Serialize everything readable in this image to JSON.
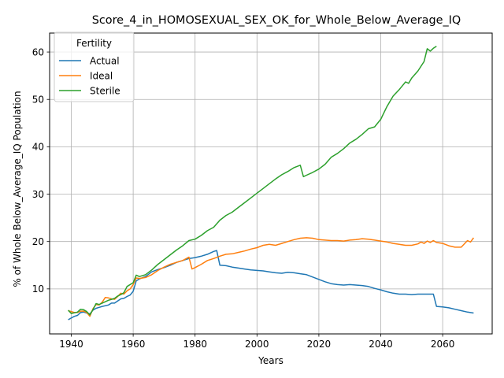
{
  "chart_data": {
    "type": "line",
    "title": "Score_4_in_HOMOSEXUAL_SEX_OK_for_Whole_Below_Average_IQ",
    "xlabel": "Years",
    "ylabel": "% of Whole Below_Average_IQ Population",
    "xlim": [
      1933,
      2076
    ],
    "ylim": [
      0.5,
      64
    ],
    "xticks": [
      1940,
      1960,
      1980,
      2000,
      2020,
      2040,
      2060
    ],
    "yticks": [
      10,
      20,
      30,
      40,
      50,
      60
    ],
    "grid": true,
    "legend": {
      "title": "Fertility",
      "placement": "top-left"
    },
    "series": [
      {
        "name": "Actual",
        "color": "#1f77b4",
        "x": [
          1939,
          1941,
          1942,
          1943,
          1944,
          1945,
          1946,
          1947,
          1948,
          1949,
          1950,
          1952,
          1953,
          1954,
          1956,
          1957,
          1958,
          1959,
          1960,
          1961,
          1962,
          1964,
          1966,
          1968,
          1970,
          1972,
          1974,
          1976,
          1978,
          1979,
          1980,
          1982,
          1984,
          1986,
          1987,
          1988,
          1990,
          1992,
          1994,
          1996,
          1998,
          2000,
          2002,
          2004,
          2006,
          2008,
          2010,
          2012,
          2014,
          2016,
          2018,
          2020,
          2022,
          2024,
          2026,
          2028,
          2030,
          2032,
          2034,
          2036,
          2038,
          2040,
          2042,
          2044,
          2046,
          2048,
          2050,
          2052,
          2054,
          2056,
          2057,
          2058,
          2060,
          2062,
          2064,
          2066,
          2068,
          2070
        ],
        "y": [
          3.5,
          4.2,
          4.4,
          5.0,
          5.1,
          4.9,
          4.7,
          5.5,
          5.9,
          6.1,
          6.3,
          6.6,
          7.0,
          7.0,
          7.9,
          8.0,
          8.4,
          8.7,
          9.5,
          11.7,
          12.1,
          12.6,
          13.6,
          14.1,
          14.5,
          15.0,
          15.6,
          16.0,
          16.4,
          16.5,
          16.6,
          16.9,
          17.3,
          17.9,
          18.1,
          15.0,
          14.9,
          14.6,
          14.4,
          14.2,
          14.0,
          13.9,
          13.8,
          13.6,
          13.4,
          13.3,
          13.5,
          13.4,
          13.2,
          13.0,
          12.5,
          12.0,
          11.5,
          11.1,
          10.9,
          10.8,
          10.9,
          10.8,
          10.7,
          10.5,
          10.1,
          9.8,
          9.4,
          9.1,
          8.9,
          8.9,
          8.8,
          8.9,
          8.9,
          8.9,
          8.9,
          6.3,
          6.2,
          6.0,
          5.7,
          5.4,
          5.1,
          4.9
        ]
      },
      {
        "name": "Ideal",
        "color": "#ff7f0e",
        "x": [
          1939,
          1941,
          1942,
          1943,
          1944,
          1945,
          1946,
          1947,
          1948,
          1949,
          1950,
          1951,
          1952,
          1953,
          1954,
          1955,
          1956,
          1957,
          1958,
          1959,
          1960,
          1961,
          1962,
          1964,
          1966,
          1968,
          1970,
          1972,
          1974,
          1976,
          1978,
          1979,
          1980,
          1982,
          1984,
          1986,
          1988,
          1990,
          1992,
          1994,
          1996,
          1998,
          2000,
          2002,
          2004,
          2006,
          2008,
          2010,
          2012,
          2014,
          2016,
          2018,
          2020,
          2022,
          2024,
          2026,
          2028,
          2030,
          2032,
          2034,
          2036,
          2038,
          2040,
          2042,
          2044,
          2046,
          2048,
          2050,
          2052,
          2053,
          2054,
          2055,
          2056,
          2057,
          2058,
          2060,
          2062,
          2064,
          2066,
          2068,
          2069,
          2070
        ],
        "y": [
          5.4,
          5.0,
          5.0,
          5.3,
          5.3,
          5.0,
          4.2,
          5.8,
          6.7,
          6.6,
          7.2,
          8.2,
          8.1,
          7.9,
          7.8,
          8.4,
          9.1,
          8.9,
          9.6,
          10.0,
          10.9,
          12.3,
          12.2,
          12.4,
          13.0,
          13.9,
          14.6,
          15.2,
          15.6,
          16.0,
          16.7,
          14.2,
          14.5,
          15.2,
          16.0,
          16.4,
          16.9,
          17.3,
          17.4,
          17.7,
          18.0,
          18.4,
          18.7,
          19.2,
          19.4,
          19.2,
          19.6,
          20.0,
          20.4,
          20.7,
          20.8,
          20.7,
          20.4,
          20.3,
          20.2,
          20.2,
          20.1,
          20.3,
          20.4,
          20.6,
          20.5,
          20.3,
          20.1,
          19.9,
          19.6,
          19.4,
          19.2,
          19.2,
          19.5,
          19.9,
          19.6,
          20.1,
          19.8,
          20.2,
          19.8,
          19.6,
          19.1,
          18.8,
          18.8,
          20.2,
          19.9,
          20.8
        ]
      },
      {
        "name": "Sterile",
        "color": "#2ca02c",
        "x": [
          1939,
          1940,
          1942,
          1943,
          1944,
          1945,
          1946,
          1947,
          1948,
          1949,
          1950,
          1952,
          1953,
          1954,
          1955,
          1956,
          1957,
          1958,
          1960,
          1961,
          1962,
          1964,
          1966,
          1968,
          1970,
          1972,
          1974,
          1976,
          1978,
          1980,
          1982,
          1984,
          1986,
          1988,
          1990,
          1992,
          1994,
          1996,
          1998,
          2000,
          2002,
          2004,
          2006,
          2008,
          2010,
          2012,
          2014,
          2015,
          2016,
          2018,
          2020,
          2022,
          2024,
          2026,
          2028,
          2030,
          2032,
          2034,
          2036,
          2038,
          2040,
          2042,
          2044,
          2046,
          2048,
          2049,
          2050,
          2052,
          2054,
          2055,
          2056,
          2057,
          2058
        ],
        "y": [
          5.5,
          4.8,
          5.1,
          5.7,
          5.6,
          5.2,
          4.5,
          5.6,
          6.9,
          6.7,
          7.0,
          7.6,
          7.8,
          8.0,
          8.5,
          8.8,
          9.2,
          10.5,
          11.3,
          12.9,
          12.6,
          13.0,
          14.0,
          15.2,
          16.2,
          17.2,
          18.2,
          19.1,
          20.2,
          20.5,
          21.3,
          22.3,
          23.0,
          24.5,
          25.5,
          26.2,
          27.2,
          28.2,
          29.2,
          30.2,
          31.2,
          32.2,
          33.2,
          34.1,
          34.8,
          35.6,
          36.1,
          33.7,
          34.0,
          34.6,
          35.3,
          36.3,
          37.8,
          38.6,
          39.6,
          40.8,
          41.6,
          42.6,
          43.8,
          44.2,
          45.8,
          48.5,
          50.7,
          52.1,
          53.7,
          53.4,
          54.5,
          56.0,
          58.0,
          60.7,
          60.2,
          60.8,
          61.2
        ]
      }
    ]
  }
}
